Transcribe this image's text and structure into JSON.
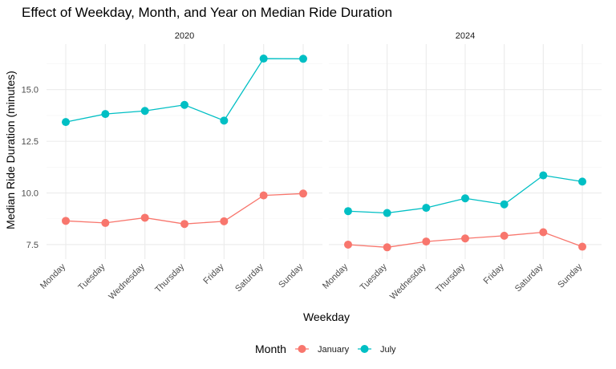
{
  "chart_data": {
    "type": "line",
    "title": "Effect of Weekday, Month, and Year on Median Ride Duration",
    "xlabel": "Weekday",
    "ylabel": "Median Ride Duration (minutes)",
    "categories": [
      "Monday",
      "Tuesday",
      "Wednesday",
      "Thursday",
      "Friday",
      "Saturday",
      "Sunday"
    ],
    "ylim": [
      6.8,
      17.2
    ],
    "yticks": [
      7.5,
      10.0,
      12.5,
      15.0
    ],
    "ytick_labels": [
      "7.5",
      "10.0",
      "12.5",
      "15.0"
    ],
    "grid": true,
    "legend": {
      "title": "Month",
      "position": "bottom"
    },
    "facets": [
      {
        "label": "2020",
        "series": [
          {
            "name": "January",
            "color": "#f8766d",
            "values": [
              8.65,
              8.55,
              8.8,
              8.5,
              8.63,
              9.88,
              9.97
            ]
          },
          {
            "name": "July",
            "color": "#00bfc4",
            "values": [
              13.43,
              13.82,
              13.97,
              14.26,
              13.5,
              16.5,
              16.49
            ]
          }
        ]
      },
      {
        "label": "2024",
        "series": [
          {
            "name": "January",
            "color": "#f8766d",
            "values": [
              7.5,
              7.37,
              7.65,
              7.8,
              7.93,
              8.1,
              7.4
            ]
          },
          {
            "name": "July",
            "color": "#00bfc4",
            "values": [
              9.12,
              9.03,
              9.28,
              9.74,
              9.45,
              10.85,
              10.55
            ]
          }
        ]
      }
    ]
  }
}
